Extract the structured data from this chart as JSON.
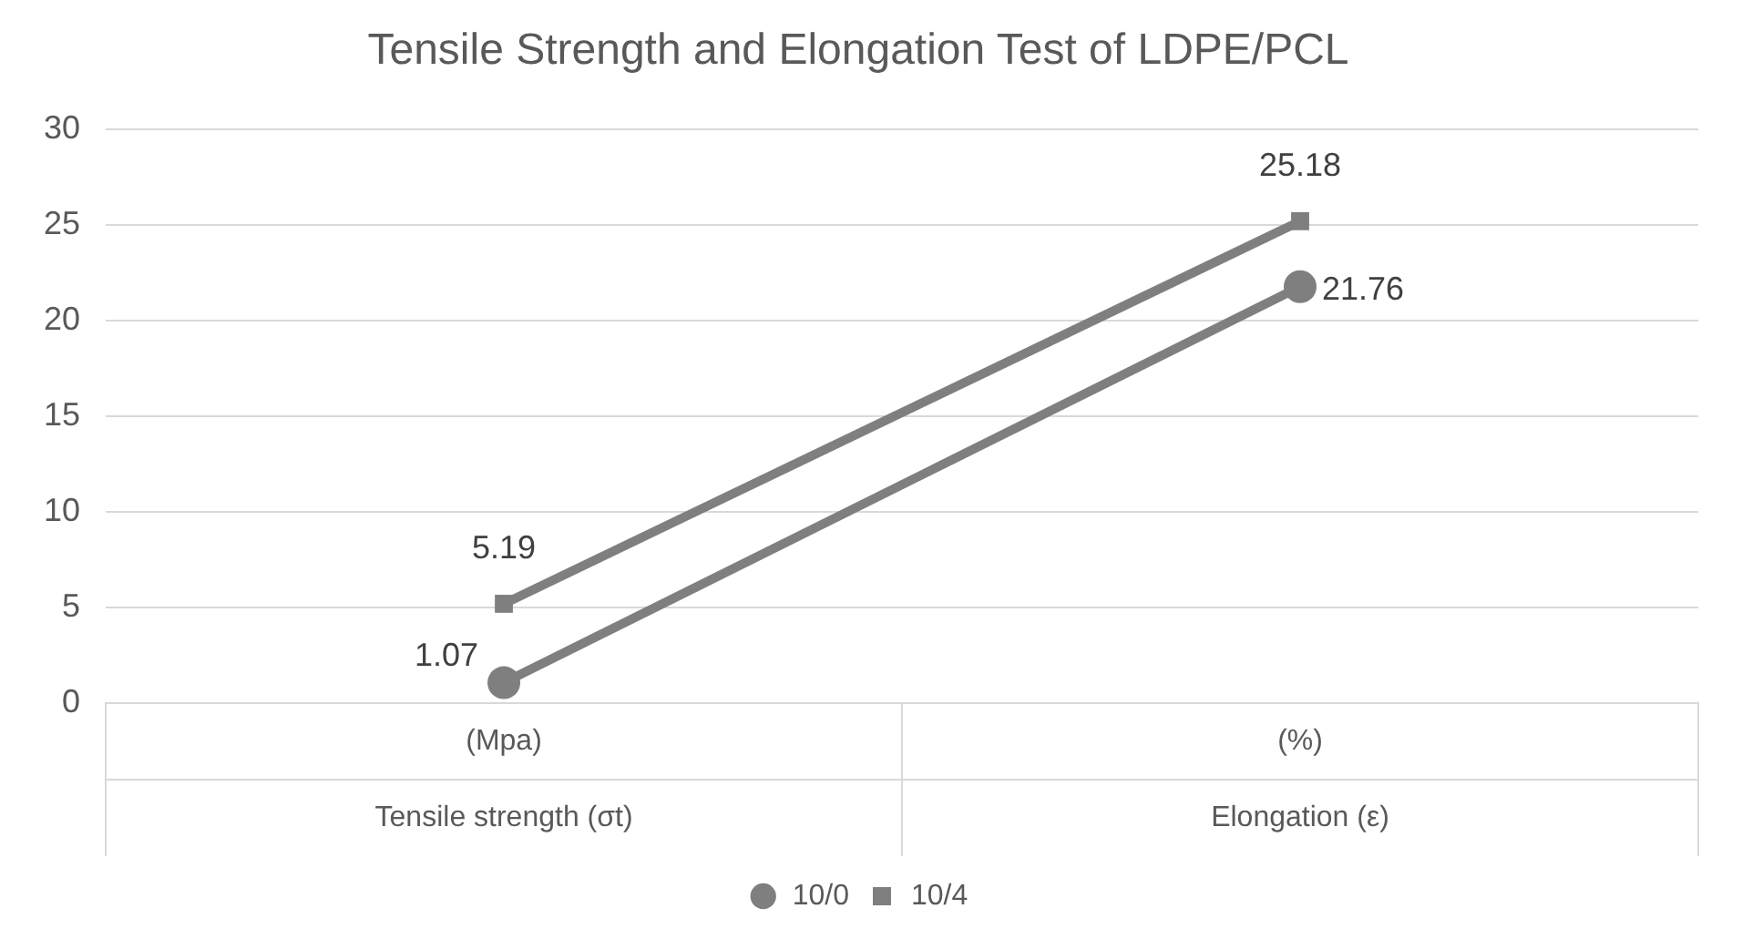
{
  "chart_data": {
    "type": "line",
    "title": "Tensile Strength and Elongation Test of LDPE/PCL",
    "categories": [
      "(Mpa)\nTensile strength (σt)",
      "(%)\nElongation (ε)"
    ],
    "series": [
      {
        "name": "10/0",
        "color": "#7f7f7f",
        "marker": "circle",
        "values": [
          1.07,
          21.76
        ]
      },
      {
        "name": "10/4",
        "color": "#7f7f7f",
        "marker": "square",
        "values": [
          5.19,
          25.18
        ]
      }
    ],
    "ylim": [
      0,
      30
    ],
    "yticks": [
      0,
      5,
      10,
      15,
      20,
      25,
      30
    ],
    "grid": "y",
    "legend": "bottom",
    "data_labels": true,
    "line_style": "solid"
  }
}
